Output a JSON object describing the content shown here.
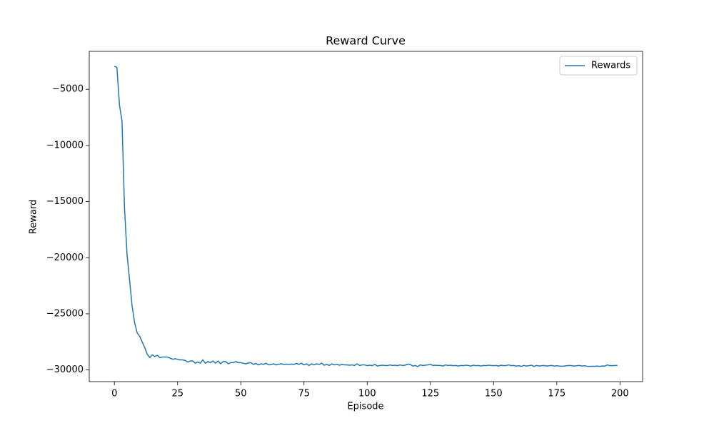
{
  "chart_data": {
    "type": "line",
    "title": "Reward Curve",
    "x_label": "Episode",
    "y_label": "Reward",
    "x": [
      0,
      1,
      2,
      3,
      4,
      5,
      6,
      7,
      8,
      9,
      10,
      11,
      12,
      13,
      14,
      15,
      16,
      17,
      18,
      19,
      20,
      21,
      22,
      23,
      24,
      25,
      26,
      27,
      28,
      29,
      30,
      31,
      32,
      33,
      34,
      35,
      36,
      37,
      38,
      39,
      40,
      41,
      42,
      43,
      44,
      45,
      46,
      47,
      48,
      49,
      50,
      51,
      52,
      53,
      54,
      55,
      56,
      57,
      58,
      59,
      60,
      61,
      62,
      63,
      64,
      65,
      66,
      67,
      68,
      69,
      70,
      71,
      72,
      73,
      74,
      75,
      76,
      77,
      78,
      79,
      80,
      81,
      82,
      83,
      84,
      85,
      86,
      87,
      88,
      89,
      90,
      91,
      92,
      93,
      94,
      95,
      96,
      97,
      98,
      99,
      100,
      101,
      102,
      103,
      104,
      105,
      106,
      107,
      108,
      109,
      110,
      111,
      112,
      113,
      114,
      115,
      116,
      117,
      118,
      119,
      120,
      121,
      122,
      123,
      124,
      125,
      126,
      127,
      128,
      129,
      130,
      131,
      132,
      133,
      134,
      135,
      136,
      137,
      138,
      139,
      140,
      141,
      142,
      143,
      144,
      145,
      146,
      147,
      148,
      149,
      150,
      151,
      152,
      153,
      154,
      155,
      156,
      157,
      158,
      159,
      160,
      161,
      162,
      163,
      164,
      165,
      166,
      167,
      168,
      169,
      170,
      171,
      172,
      173,
      174,
      175,
      176,
      177,
      178,
      179,
      180,
      181,
      182,
      183,
      184,
      185,
      186,
      187,
      188,
      189,
      190,
      191,
      192,
      193,
      194,
      195,
      196,
      197,
      198,
      199
    ],
    "series": [
      {
        "name": "Rewards",
        "color": "#1f77b4",
        "values": [
          -2950,
          -3050,
          -6400,
          -7800,
          -15600,
          -19700,
          -22000,
          -24300,
          -25800,
          -26700,
          -27000,
          -27500,
          -28000,
          -28600,
          -28900,
          -28650,
          -28800,
          -28700,
          -28900,
          -28850,
          -28850,
          -28850,
          -28950,
          -29050,
          -29000,
          -29050,
          -29100,
          -29100,
          -29150,
          -29300,
          -29200,
          -29200,
          -29400,
          -29300,
          -29400,
          -29100,
          -29400,
          -29250,
          -29350,
          -29200,
          -29400,
          -29200,
          -29450,
          -29250,
          -29250,
          -29450,
          -29350,
          -29350,
          -29250,
          -29350,
          -29350,
          -29400,
          -29450,
          -29380,
          -29350,
          -29500,
          -29420,
          -29550,
          -29450,
          -29500,
          -29400,
          -29550,
          -29500,
          -29450,
          -29550,
          -29480,
          -29450,
          -29500,
          -29480,
          -29500,
          -29480,
          -29500,
          -29420,
          -29500,
          -29400,
          -29550,
          -29450,
          -29600,
          -29450,
          -29550,
          -29450,
          -29500,
          -29400,
          -29580,
          -29500,
          -29600,
          -29450,
          -29550,
          -29480,
          -29580,
          -29500,
          -29550,
          -29550,
          -29580,
          -29550,
          -29600,
          -29450,
          -29600,
          -29550,
          -29550,
          -29620,
          -29580,
          -29620,
          -29500,
          -29650,
          -29600,
          -29580,
          -29600,
          -29620,
          -29550,
          -29600,
          -29580,
          -29620,
          -29550,
          -29600,
          -29580,
          -29480,
          -29500,
          -29650,
          -29600,
          -29700,
          -29550,
          -29600,
          -29580,
          -29550,
          -29500,
          -29600,
          -29580,
          -29600,
          -29600,
          -29650,
          -29550,
          -29600,
          -29580,
          -29620,
          -29600,
          -29650,
          -29600,
          -29620,
          -29580,
          -29600,
          -29650,
          -29580,
          -29620,
          -29600,
          -29650,
          -29600,
          -29620,
          -29580,
          -29600,
          -29620,
          -29600,
          -29650,
          -29580,
          -29620,
          -29600,
          -29550,
          -29620,
          -29600,
          -29650,
          -29620,
          -29680,
          -29600,
          -29650,
          -29620,
          -29580,
          -29680,
          -29600,
          -29650,
          -29620,
          -29600,
          -29650,
          -29620,
          -29600,
          -29650,
          -29620,
          -29650,
          -29670,
          -29650,
          -29620,
          -29600,
          -29620,
          -29650,
          -29620,
          -29600,
          -29650,
          -29620,
          -29670,
          -29680,
          -29670,
          -29670,
          -29660,
          -29680,
          -29650,
          -29660,
          -29550,
          -29620,
          -29620,
          -29600,
          -29600
        ]
      }
    ],
    "xlim": [
      -9.95,
      208.95
    ],
    "xticks": [
      0,
      25,
      50,
      75,
      100,
      125,
      150,
      175,
      200
    ],
    "ylim": [
      -31040,
      -1620
    ],
    "yticks": [
      {
        "value": -30000,
        "label": "−30000"
      },
      {
        "value": -25000,
        "label": "−25000"
      },
      {
        "value": -20000,
        "label": "−20000"
      },
      {
        "value": -15000,
        "label": "−15000"
      },
      {
        "value": -10000,
        "label": "−10000"
      },
      {
        "value": -5000,
        "label": "−5000"
      }
    ],
    "grid": false,
    "legend": "upper right"
  }
}
